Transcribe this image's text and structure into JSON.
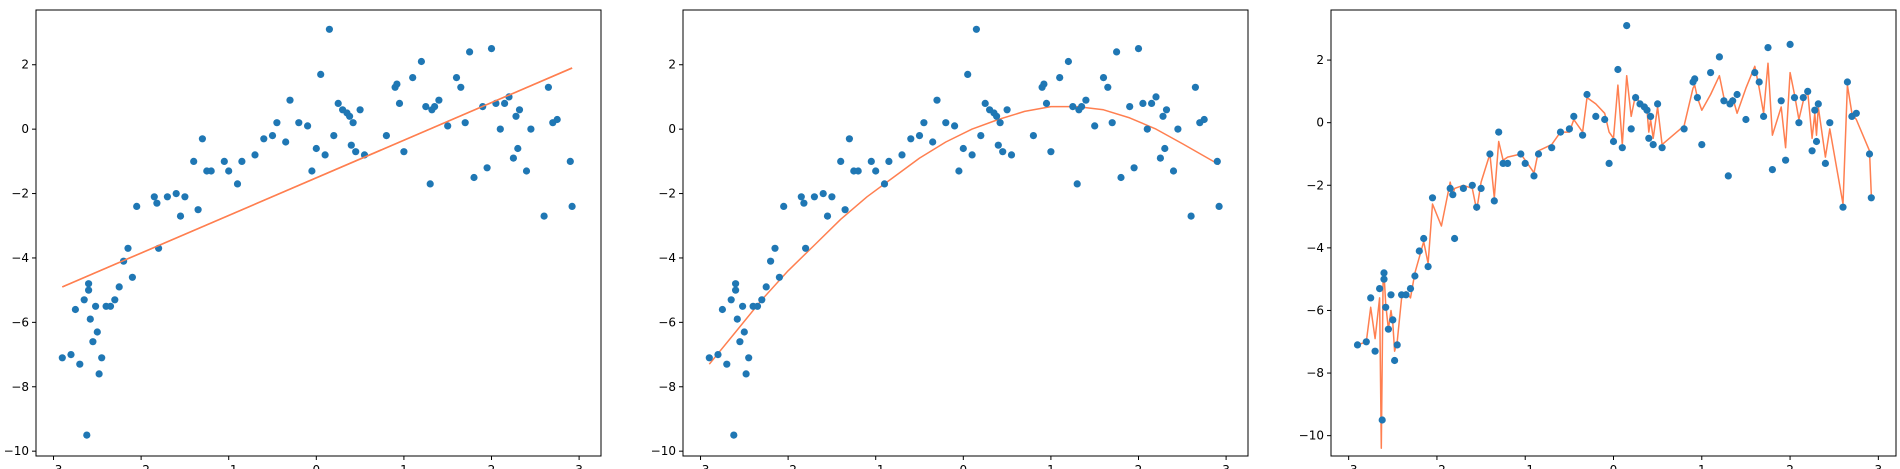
{
  "colors": {
    "points": "#1f77b4",
    "fit": "#ff7f50",
    "axes": "#000000",
    "background": "#ffffff"
  },
  "chart_data": [
    {
      "type": "scatter",
      "title": "",
      "xlabel": "",
      "ylabel": "",
      "xlim": [
        -3.2,
        3.25
      ],
      "ylim": [
        -10.15,
        3.7
      ],
      "xticks": [
        -3,
        -2,
        -1,
        0,
        1,
        2,
        3
      ],
      "xtick_labels": [
        "−3",
        "−2",
        "−1",
        "0",
        "1",
        "2",
        "3"
      ],
      "yticks": [
        -10,
        -8,
        -6,
        -4,
        -2,
        0,
        2
      ],
      "ytick_labels": [
        "−10",
        "−8",
        "−6",
        "−4",
        "−2",
        "0",
        "2"
      ],
      "grid": false,
      "legend": "none",
      "series": [
        {
          "role": "points",
          "x": [
            -2.9,
            -2.8,
            -2.75,
            -2.7,
            -2.65,
            -2.62,
            -2.6,
            -2.6,
            -2.58,
            -2.55,
            -2.52,
            -2.5,
            -2.48,
            -2.45,
            -2.4,
            -2.35,
            -2.3,
            -2.25,
            -2.2,
            -2.15,
            -2.1,
            -2.05,
            -1.85,
            -1.82,
            -1.8,
            -1.7,
            -1.6,
            -1.55,
            -1.5,
            -1.4,
            -1.35,
            -1.3,
            -1.25,
            -1.2,
            -1.05,
            -1.0,
            -0.9,
            -0.85,
            -0.7,
            -0.6,
            -0.5,
            -0.45,
            -0.35,
            -0.3,
            -0.2,
            -0.1,
            -0.05,
            0.0,
            0.05,
            0.1,
            0.15,
            0.2,
            0.25,
            0.3,
            0.35,
            0.38,
            0.4,
            0.42,
            0.45,
            0.5,
            0.55,
            0.8,
            0.9,
            0.92,
            0.95,
            1.0,
            1.1,
            1.2,
            1.25,
            1.3,
            1.32,
            1.35,
            1.4,
            1.5,
            1.6,
            1.65,
            1.7,
            1.75,
            1.8,
            1.9,
            1.95,
            2.0,
            2.05,
            2.1,
            2.15,
            2.2,
            2.25,
            2.28,
            2.3,
            2.32,
            2.4,
            2.45,
            2.6,
            2.65,
            2.7,
            2.75,
            2.9,
            2.92
          ],
          "y": [
            -7.1,
            -7.0,
            -5.6,
            -7.3,
            -5.3,
            -9.5,
            -4.8,
            -5.0,
            -5.9,
            -6.6,
            -5.5,
            -6.3,
            -7.6,
            -7.1,
            -5.5,
            -5.5,
            -5.3,
            -4.9,
            -4.1,
            -3.7,
            -4.6,
            -2.4,
            -2.1,
            -2.3,
            -3.7,
            -2.1,
            -2.0,
            -2.7,
            -2.1,
            -1.0,
            -2.5,
            -0.3,
            -1.3,
            -1.3,
            -1.0,
            -1.3,
            -1.7,
            -1.0,
            -0.8,
            -0.3,
            -0.2,
            0.2,
            -0.4,
            0.9,
            0.2,
            0.1,
            -1.3,
            -0.6,
            1.7,
            -0.8,
            3.1,
            -0.2,
            0.8,
            0.6,
            0.5,
            0.4,
            -0.5,
            0.2,
            -0.7,
            0.6,
            -0.8,
            -0.2,
            1.3,
            1.4,
            0.8,
            -0.7,
            1.6,
            2.1,
            0.7,
            -1.7,
            0.6,
            0.7,
            0.9,
            0.1,
            1.6,
            1.3,
            0.2,
            2.4,
            -1.5,
            0.7,
            -1.2,
            2.5,
            0.8,
            0.0,
            0.8,
            1.0,
            -0.9,
            0.4,
            -0.6,
            0.6,
            -1.3,
            0.0,
            -2.7,
            1.3,
            0.2,
            0.3,
            -1.0,
            -2.4
          ]
        },
        {
          "role": "linear-fit",
          "x": [
            -2.9,
            2.92
          ],
          "y": [
            -4.9,
            1.9
          ]
        }
      ]
    },
    {
      "type": "scatter",
      "title": "",
      "xlabel": "",
      "ylabel": "",
      "xlim": [
        -3.2,
        3.25
      ],
      "ylim": [
        -10.15,
        3.7
      ],
      "xticks": [
        -3,
        -2,
        -1,
        0,
        1,
        2,
        3
      ],
      "xtick_labels": [
        "−3",
        "−2",
        "−1",
        "0",
        "1",
        "2",
        "3"
      ],
      "yticks": [
        -10,
        -8,
        -6,
        -4,
        -2,
        0,
        2
      ],
      "ytick_labels": [
        "−10",
        "−8",
        "−6",
        "−4",
        "−2",
        "0",
        "2"
      ],
      "grid": false,
      "legend": "none",
      "series": [
        {
          "role": "points",
          "x": [
            -2.9,
            -2.8,
            -2.75,
            -2.7,
            -2.65,
            -2.62,
            -2.6,
            -2.6,
            -2.58,
            -2.55,
            -2.52,
            -2.5,
            -2.48,
            -2.45,
            -2.4,
            -2.35,
            -2.3,
            -2.25,
            -2.2,
            -2.15,
            -2.1,
            -2.05,
            -1.85,
            -1.82,
            -1.8,
            -1.7,
            -1.6,
            -1.55,
            -1.5,
            -1.4,
            -1.35,
            -1.3,
            -1.25,
            -1.2,
            -1.05,
            -1.0,
            -0.9,
            -0.85,
            -0.7,
            -0.6,
            -0.5,
            -0.45,
            -0.35,
            -0.3,
            -0.2,
            -0.1,
            -0.05,
            0.0,
            0.05,
            0.1,
            0.15,
            0.2,
            0.25,
            0.3,
            0.35,
            0.38,
            0.4,
            0.42,
            0.45,
            0.5,
            0.55,
            0.8,
            0.9,
            0.92,
            0.95,
            1.0,
            1.1,
            1.2,
            1.25,
            1.3,
            1.32,
            1.35,
            1.4,
            1.5,
            1.6,
            1.65,
            1.7,
            1.75,
            1.8,
            1.9,
            1.95,
            2.0,
            2.05,
            2.1,
            2.15,
            2.2,
            2.25,
            2.28,
            2.3,
            2.32,
            2.4,
            2.45,
            2.6,
            2.65,
            2.7,
            2.75,
            2.9,
            2.92
          ],
          "y": [
            -7.1,
            -7.0,
            -5.6,
            -7.3,
            -5.3,
            -9.5,
            -4.8,
            -5.0,
            -5.9,
            -6.6,
            -5.5,
            -6.3,
            -7.6,
            -7.1,
            -5.5,
            -5.5,
            -5.3,
            -4.9,
            -4.1,
            -3.7,
            -4.6,
            -2.4,
            -2.1,
            -2.3,
            -3.7,
            -2.1,
            -2.0,
            -2.7,
            -2.1,
            -1.0,
            -2.5,
            -0.3,
            -1.3,
            -1.3,
            -1.0,
            -1.3,
            -1.7,
            -1.0,
            -0.8,
            -0.3,
            -0.2,
            0.2,
            -0.4,
            0.9,
            0.2,
            0.1,
            -1.3,
            -0.6,
            1.7,
            -0.8,
            3.1,
            -0.2,
            0.8,
            0.6,
            0.5,
            0.4,
            -0.5,
            0.2,
            -0.7,
            0.6,
            -0.8,
            -0.2,
            1.3,
            1.4,
            0.8,
            -0.7,
            1.6,
            2.1,
            0.7,
            -1.7,
            0.6,
            0.7,
            0.9,
            0.1,
            1.6,
            1.3,
            0.2,
            2.4,
            -1.5,
            0.7,
            -1.2,
            2.5,
            0.8,
            0.0,
            0.8,
            1.0,
            -0.9,
            0.4,
            -0.6,
            0.6,
            -1.3,
            0.0,
            -2.7,
            1.3,
            0.2,
            0.3,
            -1.0,
            -2.4
          ]
        },
        {
          "role": "quadratic-fit",
          "x": [
            -2.9,
            -2.6,
            -2.3,
            -2.0,
            -1.7,
            -1.4,
            -1.1,
            -0.8,
            -0.5,
            -0.2,
            0.1,
            0.4,
            0.7,
            1.0,
            1.3,
            1.6,
            1.9,
            2.2,
            2.5,
            2.92
          ],
          "y": [
            -7.3,
            -6.3,
            -5.3,
            -4.4,
            -3.6,
            -2.8,
            -2.1,
            -1.5,
            -0.9,
            -0.4,
            0.0,
            0.3,
            0.55,
            0.7,
            0.7,
            0.6,
            0.35,
            0.0,
            -0.45,
            -1.1
          ]
        }
      ]
    },
    {
      "type": "scatter",
      "title": "",
      "xlabel": "",
      "ylabel": "",
      "xlim": [
        -3.2,
        3.2
      ],
      "ylim": [
        -10.65,
        3.6
      ],
      "xticks": [
        -3,
        -2,
        -1,
        0,
        1,
        2,
        3
      ],
      "xtick_labels": [
        "−3",
        "−2",
        "−1",
        "0",
        "1",
        "2",
        "3"
      ],
      "yticks": [
        -10,
        -8,
        -6,
        -4,
        -2,
        0,
        2
      ],
      "ytick_labels": [
        "−10",
        "−8",
        "−6",
        "−4",
        "−2",
        "0",
        "2"
      ],
      "grid": false,
      "legend": "none",
      "series": [
        {
          "role": "points",
          "x": [
            -2.9,
            -2.8,
            -2.75,
            -2.7,
            -2.65,
            -2.62,
            -2.6,
            -2.6,
            -2.58,
            -2.55,
            -2.52,
            -2.5,
            -2.48,
            -2.45,
            -2.4,
            -2.35,
            -2.3,
            -2.25,
            -2.2,
            -2.15,
            -2.1,
            -2.05,
            -1.85,
            -1.82,
            -1.8,
            -1.7,
            -1.6,
            -1.55,
            -1.5,
            -1.4,
            -1.35,
            -1.3,
            -1.25,
            -1.2,
            -1.05,
            -1.0,
            -0.9,
            -0.85,
            -0.7,
            -0.6,
            -0.5,
            -0.45,
            -0.35,
            -0.3,
            -0.2,
            -0.1,
            -0.05,
            0.0,
            0.05,
            0.1,
            0.15,
            0.2,
            0.25,
            0.3,
            0.35,
            0.38,
            0.4,
            0.42,
            0.45,
            0.5,
            0.55,
            0.8,
            0.9,
            0.92,
            0.95,
            1.0,
            1.1,
            1.2,
            1.25,
            1.3,
            1.32,
            1.35,
            1.4,
            1.5,
            1.6,
            1.65,
            1.7,
            1.75,
            1.8,
            1.9,
            1.95,
            2.0,
            2.05,
            2.1,
            2.15,
            2.2,
            2.25,
            2.28,
            2.3,
            2.32,
            2.4,
            2.45,
            2.6,
            2.65,
            2.7,
            2.75,
            2.9,
            2.92
          ],
          "y": [
            -7.1,
            -7.0,
            -5.6,
            -7.3,
            -5.3,
            -9.5,
            -4.8,
            -5.0,
            -5.9,
            -6.6,
            -5.5,
            -6.3,
            -7.6,
            -7.1,
            -5.5,
            -5.5,
            -5.3,
            -4.9,
            -4.1,
            -3.7,
            -4.6,
            -2.4,
            -2.1,
            -2.3,
            -3.7,
            -2.1,
            -2.0,
            -2.7,
            -2.1,
            -1.0,
            -2.5,
            -0.3,
            -1.3,
            -1.3,
            -1.0,
            -1.3,
            -1.7,
            -1.0,
            -0.8,
            -0.3,
            -0.2,
            0.2,
            -0.4,
            0.9,
            0.2,
            0.1,
            -1.3,
            -0.6,
            1.7,
            -0.8,
            3.1,
            -0.2,
            0.8,
            0.6,
            0.5,
            0.4,
            -0.5,
            0.2,
            -0.7,
            0.6,
            -0.8,
            -0.2,
            1.3,
            1.4,
            0.8,
            -0.7,
            1.6,
            2.1,
            0.7,
            -1.7,
            0.6,
            0.7,
            0.9,
            0.1,
            1.6,
            1.3,
            0.2,
            2.4,
            -1.5,
            0.7,
            -1.2,
            2.5,
            0.8,
            0.0,
            0.8,
            1.0,
            -0.9,
            0.4,
            -0.6,
            0.6,
            -1.3,
            0.0,
            -2.7,
            1.3,
            0.2,
            0.3,
            -1.0,
            -2.4
          ]
        },
        {
          "role": "overfit-curve",
          "x": [
            -2.9,
            -2.8,
            -2.75,
            -2.7,
            -2.65,
            -2.63,
            -2.61,
            -2.6,
            -2.58,
            -2.55,
            -2.52,
            -2.5,
            -2.48,
            -2.45,
            -2.4,
            -2.35,
            -2.3,
            -2.25,
            -2.2,
            -2.15,
            -2.1,
            -2.05,
            -1.95,
            -1.85,
            -1.82,
            -1.8,
            -1.7,
            -1.6,
            -1.55,
            -1.5,
            -1.4,
            -1.35,
            -1.3,
            -1.25,
            -1.2,
            -1.05,
            -1.0,
            -0.9,
            -0.85,
            -0.7,
            -0.6,
            -0.5,
            -0.45,
            -0.35,
            -0.3,
            -0.2,
            -0.1,
            -0.05,
            0.0,
            0.05,
            0.1,
            0.15,
            0.2,
            0.25,
            0.3,
            0.35,
            0.38,
            0.4,
            0.42,
            0.45,
            0.5,
            0.55,
            0.8,
            0.9,
            0.92,
            0.95,
            1.0,
            1.1,
            1.2,
            1.25,
            1.3,
            1.32,
            1.35,
            1.4,
            1.5,
            1.6,
            1.65,
            1.7,
            1.75,
            1.8,
            1.9,
            1.95,
            2.0,
            2.05,
            2.1,
            2.15,
            2.2,
            2.25,
            2.28,
            2.3,
            2.32,
            2.4,
            2.45,
            2.6,
            2.65,
            2.7,
            2.75,
            2.9,
            2.92
          ],
          "y": [
            -7.1,
            -7.0,
            -5.9,
            -6.9,
            -5.6,
            -10.4,
            -5.0,
            -4.8,
            -5.8,
            -6.6,
            -6.0,
            -6.4,
            -7.3,
            -7.0,
            -5.6,
            -5.4,
            -5.6,
            -4.8,
            -4.3,
            -3.8,
            -4.5,
            -2.6,
            -3.3,
            -1.9,
            -2.3,
            -2.1,
            -2.0,
            -2.1,
            -2.8,
            -1.9,
            -1.0,
            -2.4,
            -0.6,
            -1.2,
            -1.1,
            -1.0,
            -1.2,
            -1.6,
            -0.9,
            -0.7,
            -0.3,
            -0.3,
            0.1,
            -0.3,
            0.8,
            0.6,
            0.3,
            -0.3,
            -0.5,
            1.2,
            -0.7,
            1.5,
            0.2,
            0.9,
            0.6,
            0.5,
            0.4,
            -0.3,
            0.1,
            -0.5,
            0.5,
            -0.7,
            -0.1,
            1.1,
            1.2,
            0.8,
            0.4,
            0.9,
            1.5,
            0.8,
            0.6,
            0.7,
            0.8,
            0.3,
            1.1,
            1.8,
            1.1,
            0.3,
            1.9,
            -0.4,
            0.5,
            -0.8,
            1.6,
            0.9,
            0.1,
            0.7,
            1.0,
            -0.5,
            0.3,
            -0.4,
            0.5,
            -1.1,
            -0.2,
            -2.6,
            1.2,
            0.3,
            0.1,
            -0.9,
            -2.3
          ]
        }
      ]
    }
  ]
}
